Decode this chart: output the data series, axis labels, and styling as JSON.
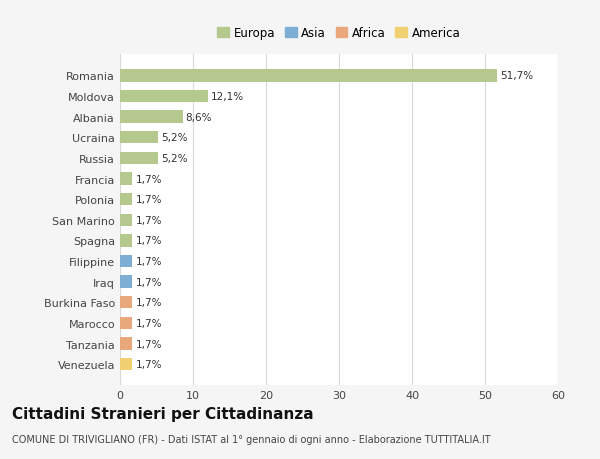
{
  "countries": [
    "Romania",
    "Moldova",
    "Albania",
    "Ucraina",
    "Russia",
    "Francia",
    "Polonia",
    "San Marino",
    "Spagna",
    "Filippine",
    "Iraq",
    "Burkina Faso",
    "Marocco",
    "Tanzania",
    "Venezuela"
  ],
  "values": [
    51.7,
    12.1,
    8.6,
    5.2,
    5.2,
    1.7,
    1.7,
    1.7,
    1.7,
    1.7,
    1.7,
    1.7,
    1.7,
    1.7,
    1.7
  ],
  "labels": [
    "51,7%",
    "12,1%",
    "8,6%",
    "5,2%",
    "5,2%",
    "1,7%",
    "1,7%",
    "1,7%",
    "1,7%",
    "1,7%",
    "1,7%",
    "1,7%",
    "1,7%",
    "1,7%",
    "1,7%"
  ],
  "categories": [
    "Europa",
    "Europa",
    "Europa",
    "Europa",
    "Europa",
    "Europa",
    "Europa",
    "Europa",
    "Europa",
    "Asia",
    "Asia",
    "Africa",
    "Africa",
    "Africa",
    "America"
  ],
  "bar_colors": {
    "Europa": "#b5c98e",
    "Asia": "#7eaed3",
    "Africa": "#e8a87c",
    "America": "#f0d070"
  },
  "background_color": "#f5f5f5",
  "plot_bg_color": "#ffffff",
  "grid_color": "#d8d8d8",
  "title": "Cittadini Stranieri per Cittadinanza",
  "subtitle": "COMUNE DI TRIVIGLIANO (FR) - Dati ISTAT al 1° gennaio di ogni anno - Elaborazione TUTTITALIA.IT",
  "xlim": [
    0,
    60
  ],
  "xticks": [
    0,
    10,
    20,
    30,
    40,
    50,
    60
  ],
  "title_fontsize": 11,
  "subtitle_fontsize": 7,
  "label_fontsize": 7.5,
  "tick_fontsize": 8,
  "legend_fontsize": 8.5
}
